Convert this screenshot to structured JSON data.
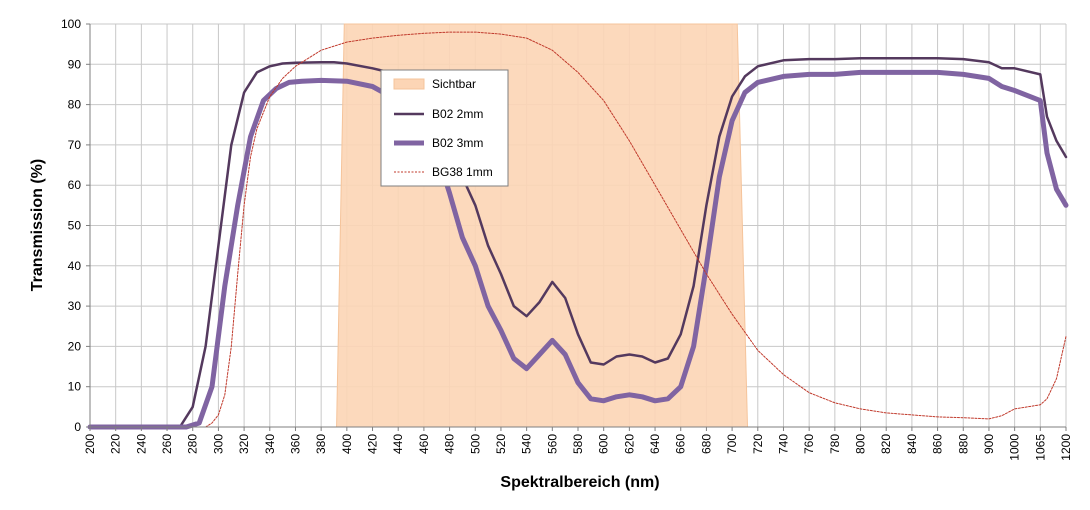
{
  "chart_data": {
    "type": "line",
    "title": "",
    "xlabel": "Spektralbereich (nm)",
    "ylabel": "Transmission (%)",
    "ylim": [
      0,
      100
    ],
    "yticks": [
      0,
      10,
      20,
      30,
      40,
      50,
      60,
      70,
      80,
      90,
      100
    ],
    "categories": [
      "200",
      "220",
      "240",
      "260",
      "280",
      "300",
      "320",
      "340",
      "360",
      "380",
      "400",
      "420",
      "440",
      "460",
      "480",
      "500",
      "520",
      "540",
      "560",
      "580",
      "600",
      "620",
      "640",
      "660",
      "680",
      "700",
      "720",
      "740",
      "760",
      "780",
      "800",
      "820",
      "840",
      "860",
      "880",
      "900",
      "1000",
      "1065",
      "1200"
    ],
    "grid": true,
    "legend_position": "top-center",
    "colors": {
      "band_fill": "#fcd5b5",
      "band_stroke": "#f5c49b",
      "b02_2mm": "#54395e",
      "b02_3mm": "#8064a2",
      "bg38": "#c0392b",
      "grid": "#c8c8c8"
    },
    "band": {
      "name": "Sichtbar",
      "x_bottom_start": 392,
      "x_top_start": 398,
      "x_top_end": 704,
      "x_bottom_end": 712,
      "value": 100
    },
    "series": [
      {
        "name": "B02 2mm",
        "style": "solid-thin",
        "points": [
          [
            200,
            0
          ],
          [
            270,
            0
          ],
          [
            280,
            5
          ],
          [
            290,
            20
          ],
          [
            300,
            45
          ],
          [
            310,
            70
          ],
          [
            320,
            83
          ],
          [
            330,
            88
          ],
          [
            340,
            89.5
          ],
          [
            350,
            90.2
          ],
          [
            360,
            90.4
          ],
          [
            380,
            90.5
          ],
          [
            390,
            90.5
          ],
          [
            400,
            90.2
          ],
          [
            420,
            89
          ],
          [
            440,
            87.5
          ],
          [
            460,
            84
          ],
          [
            470,
            78
          ],
          [
            480,
            70
          ],
          [
            490,
            62
          ],
          [
            500,
            55
          ],
          [
            510,
            45
          ],
          [
            520,
            38
          ],
          [
            530,
            30
          ],
          [
            540,
            27.5
          ],
          [
            550,
            31
          ],
          [
            560,
            36
          ],
          [
            570,
            32
          ],
          [
            580,
            23
          ],
          [
            590,
            16
          ],
          [
            600,
            15.5
          ],
          [
            610,
            17.5
          ],
          [
            620,
            18
          ],
          [
            630,
            17.5
          ],
          [
            640,
            16
          ],
          [
            650,
            17
          ],
          [
            660,
            23
          ],
          [
            670,
            35
          ],
          [
            680,
            55
          ],
          [
            690,
            72
          ],
          [
            700,
            82
          ],
          [
            710,
            87
          ],
          [
            720,
            89.5
          ],
          [
            740,
            91
          ],
          [
            760,
            91.3
          ],
          [
            780,
            91.3
          ],
          [
            800,
            91.5
          ],
          [
            820,
            91.5
          ],
          [
            840,
            91.5
          ],
          [
            860,
            91.5
          ],
          [
            880,
            91.3
          ],
          [
            900,
            90.5
          ],
          [
            950,
            89
          ],
          [
            1000,
            89
          ],
          [
            1065,
            87.5
          ],
          [
            1100,
            77
          ],
          [
            1150,
            71
          ],
          [
            1200,
            67
          ]
        ]
      },
      {
        "name": "B02 3mm",
        "style": "solid-thick",
        "points": [
          [
            200,
            0
          ],
          [
            275,
            0
          ],
          [
            285,
            1
          ],
          [
            295,
            10
          ],
          [
            305,
            35
          ],
          [
            315,
            55
          ],
          [
            325,
            72
          ],
          [
            335,
            81
          ],
          [
            345,
            84
          ],
          [
            355,
            85.5
          ],
          [
            365,
            85.8
          ],
          [
            380,
            86
          ],
          [
            400,
            85.8
          ],
          [
            420,
            84.5
          ],
          [
            440,
            81
          ],
          [
            460,
            76
          ],
          [
            470,
            68
          ],
          [
            480,
            58
          ],
          [
            490,
            47
          ],
          [
            500,
            40
          ],
          [
            510,
            30
          ],
          [
            520,
            24
          ],
          [
            530,
            17
          ],
          [
            540,
            14.5
          ],
          [
            550,
            18
          ],
          [
            560,
            21.5
          ],
          [
            570,
            18
          ],
          [
            580,
            11
          ],
          [
            590,
            7
          ],
          [
            600,
            6.5
          ],
          [
            610,
            7.5
          ],
          [
            620,
            8
          ],
          [
            630,
            7.5
          ],
          [
            640,
            6.5
          ],
          [
            650,
            7
          ],
          [
            660,
            10
          ],
          [
            670,
            20
          ],
          [
            680,
            40
          ],
          [
            690,
            62
          ],
          [
            700,
            76
          ],
          [
            710,
            83
          ],
          [
            720,
            85.5
          ],
          [
            740,
            87
          ],
          [
            760,
            87.5
          ],
          [
            780,
            87.5
          ],
          [
            800,
            88
          ],
          [
            820,
            88
          ],
          [
            840,
            88
          ],
          [
            860,
            88
          ],
          [
            880,
            87.5
          ],
          [
            900,
            86.5
          ],
          [
            950,
            84.5
          ],
          [
            1000,
            83.5
          ],
          [
            1065,
            81
          ],
          [
            1100,
            68
          ],
          [
            1150,
            59
          ],
          [
            1200,
            55
          ]
        ]
      },
      {
        "name": "BG38 1mm",
        "style": "dotted",
        "points": [
          [
            290,
            0
          ],
          [
            295,
            1
          ],
          [
            300,
            3
          ],
          [
            305,
            8
          ],
          [
            310,
            20
          ],
          [
            315,
            38
          ],
          [
            320,
            55
          ],
          [
            325,
            67
          ],
          [
            330,
            74
          ],
          [
            340,
            82
          ],
          [
            350,
            86.5
          ],
          [
            360,
            89.5
          ],
          [
            380,
            93.5
          ],
          [
            400,
            95.5
          ],
          [
            420,
            96.5
          ],
          [
            440,
            97.2
          ],
          [
            460,
            97.7
          ],
          [
            480,
            98
          ],
          [
            500,
            98
          ],
          [
            520,
            97.5
          ],
          [
            540,
            96.5
          ],
          [
            560,
            93.5
          ],
          [
            580,
            88
          ],
          [
            600,
            81
          ],
          [
            620,
            71
          ],
          [
            640,
            60
          ],
          [
            660,
            49
          ],
          [
            680,
            38
          ],
          [
            700,
            28
          ],
          [
            720,
            19
          ],
          [
            740,
            13
          ],
          [
            760,
            8.5
          ],
          [
            780,
            6
          ],
          [
            800,
            4.5
          ],
          [
            820,
            3.5
          ],
          [
            840,
            3
          ],
          [
            860,
            2.5
          ],
          [
            880,
            2.3
          ],
          [
            900,
            2
          ],
          [
            950,
            2.8
          ],
          [
            1000,
            4.5
          ],
          [
            1065,
            5.5
          ],
          [
            1100,
            7
          ],
          [
            1150,
            12
          ],
          [
            1200,
            22.5
          ]
        ]
      }
    ]
  }
}
